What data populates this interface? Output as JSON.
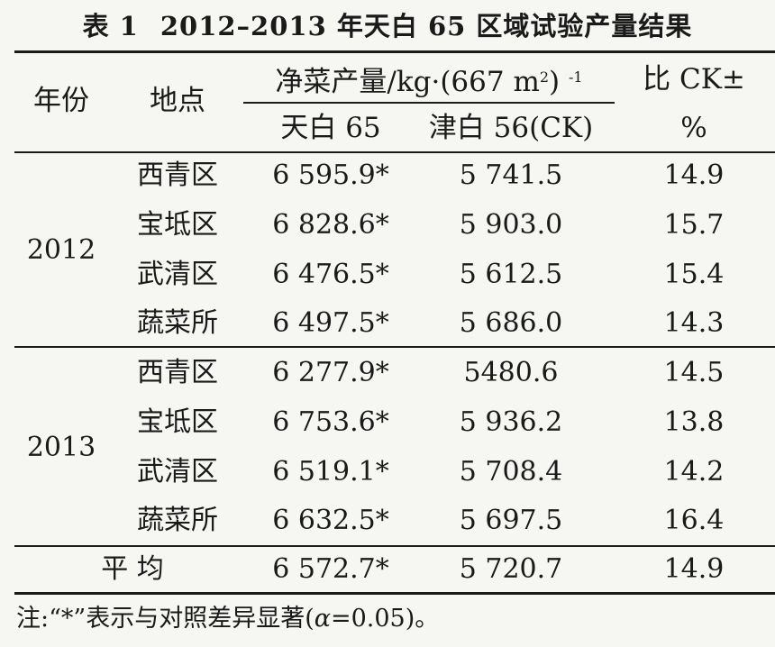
{
  "title": {
    "label": "表 1",
    "text": "2012–2013 年天白 65 区域试验产量结果"
  },
  "headers": {
    "year": "年份",
    "location": "地点",
    "yield_group_main": "净菜产量/kg·(667 m",
    "yield_group_sup": "2",
    "yield_group_tail": ") ",
    "yield_group_exp": "-1",
    "variety_tianbai": "天白 65",
    "variety_jinbai": "津白 56(CK)",
    "ratio_line1": "比 CK±",
    "ratio_line2": "%"
  },
  "groups": [
    {
      "year": "2012",
      "rows": [
        {
          "location": "西青区",
          "tianbai": "6 595.9*",
          "jinbai": "5 741.5",
          "ratio": "14.9"
        },
        {
          "location": "宝坻区",
          "tianbai": "6 828.6*",
          "jinbai": "5 903.0",
          "ratio": "15.7"
        },
        {
          "location": "武清区",
          "tianbai": "6 476.5*",
          "jinbai": "5 612.5",
          "ratio": "15.4"
        },
        {
          "location": "蔬菜所",
          "tianbai": "6 497.5*",
          "jinbai": "5 686.0",
          "ratio": "14.3"
        }
      ]
    },
    {
      "year": "2013",
      "rows": [
        {
          "location": "西青区",
          "tianbai": "6 277.9*",
          "jinbai": "5480.6",
          "ratio": "14.5"
        },
        {
          "location": "宝坻区",
          "tianbai": "6 753.6*",
          "jinbai": "5 936.2",
          "ratio": "13.8"
        },
        {
          "location": "武清区",
          "tianbai": "6 519.1*",
          "jinbai": "5 708.4",
          "ratio": "14.2"
        },
        {
          "location": "蔬菜所",
          "tianbai": "6 632.5*",
          "jinbai": "5 697.5",
          "ratio": "16.4"
        }
      ]
    }
  ],
  "average": {
    "label": "平 均",
    "tianbai": "6 572.7*",
    "jinbai": "5 720.7",
    "ratio": "14.9"
  },
  "note": {
    "prefix": "注:“*”表示与对照差异显著(",
    "alpha": "α",
    "suffix": "=0.05)。"
  }
}
